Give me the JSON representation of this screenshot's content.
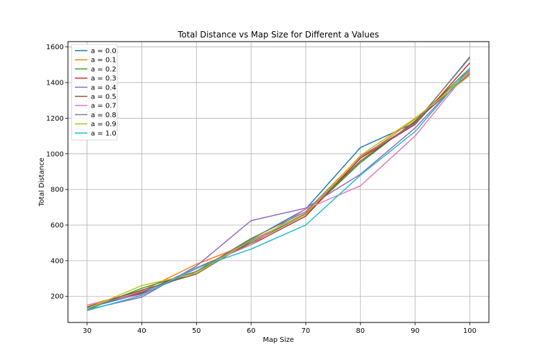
{
  "chart_data": {
    "type": "line",
    "title": "Total Distance vs Map Size for Different a Values",
    "xlabel": "Map Size",
    "ylabel": "Total Distance",
    "x": [
      30,
      40,
      50,
      60,
      70,
      80,
      90,
      100
    ],
    "xlim": [
      26.5,
      103.5
    ],
    "ylim": [
      53,
      1630
    ],
    "xticks": [
      30,
      40,
      50,
      60,
      70,
      80,
      90,
      100
    ],
    "yticks": [
      200,
      400,
      600,
      800,
      1000,
      1200,
      1400,
      1600
    ],
    "grid": true,
    "legend_position": "upper-left",
    "series": [
      {
        "name": "a = 0.0",
        "color": "#1f77b4",
        "values": [
          135,
          215,
          340,
          520,
          690,
          1035,
          1175,
          1540
        ]
      },
      {
        "name": "a = 0.1",
        "color": "#ff7f0e",
        "values": [
          150,
          230,
          380,
          500,
          665,
          975,
          1195,
          1460
        ]
      },
      {
        "name": "a = 0.2",
        "color": "#2ca02c",
        "values": [
          125,
          245,
          340,
          500,
          660,
          950,
          1185,
          1480
        ]
      },
      {
        "name": "a = 0.3",
        "color": "#d62728",
        "values": [
          140,
          220,
          360,
          490,
          650,
          975,
          1165,
          1510
        ]
      },
      {
        "name": "a = 0.4",
        "color": "#9467bd",
        "values": [
          125,
          195,
          370,
          625,
          695,
          885,
          1145,
          1470
        ]
      },
      {
        "name": "a = 0.5",
        "color": "#8c564b",
        "values": [
          140,
          235,
          325,
          510,
          665,
          960,
          1180,
          1450
        ]
      },
      {
        "name": "a = 0.7",
        "color": "#e377c2",
        "values": [
          150,
          210,
          355,
          490,
          690,
          820,
          1100,
          1475
        ]
      },
      {
        "name": "a = 0.8",
        "color": "#7f7f7f",
        "values": [
          135,
          225,
          340,
          525,
          675,
          985,
          1170,
          1545
        ]
      },
      {
        "name": "a = 0.9",
        "color": "#bcbd22",
        "values": [
          130,
          260,
          330,
          515,
          660,
          990,
          1200,
          1440
        ]
      },
      {
        "name": "a = 1.0",
        "color": "#17becf",
        "values": [
          120,
          205,
          360,
          465,
          600,
          880,
          1125,
          1480
        ]
      }
    ]
  }
}
